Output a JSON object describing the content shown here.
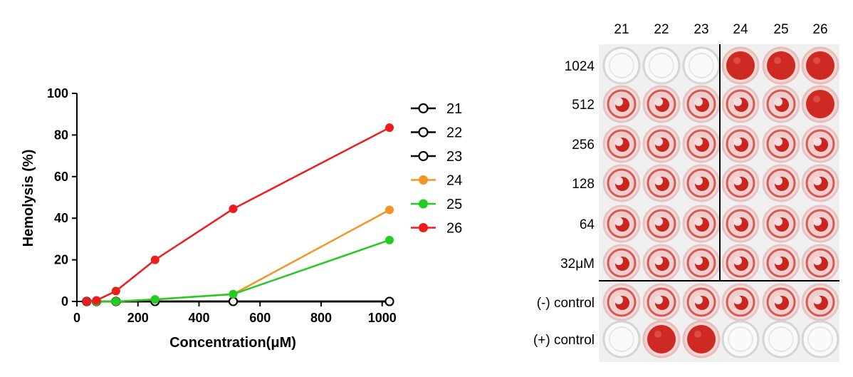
{
  "chart_data": {
    "type": "line",
    "xlabel": "Concentration(μM)",
    "ylabel": "Hemolysis (%)",
    "xlim": [
      0,
      1024
    ],
    "ylim": [
      0,
      100
    ],
    "x_ticks": [
      "0",
      "200",
      "400",
      "600",
      "800",
      "1000"
    ],
    "y_ticks": [
      "0",
      "20",
      "40",
      "60",
      "80",
      "100"
    ],
    "x": [
      32,
      64,
      128,
      256,
      512,
      1024
    ],
    "series": [
      {
        "name": "21",
        "color": "#000000",
        "marker": "open-circle",
        "values": [
          0,
          0,
          0,
          0,
          0,
          0
        ]
      },
      {
        "name": "22",
        "color": "#000000",
        "marker": "open-circle",
        "values": [
          0,
          0,
          0,
          0,
          0,
          0
        ]
      },
      {
        "name": "23",
        "color": "#000000",
        "marker": "open-circle",
        "values": [
          0,
          0,
          0,
          0,
          0,
          0
        ]
      },
      {
        "name": "24",
        "color": "#f39424",
        "marker": "filled-circle",
        "values": [
          0,
          0,
          0,
          1,
          3.5,
          44
        ]
      },
      {
        "name": "25",
        "color": "#22cc22",
        "marker": "filled-circle",
        "values": [
          0,
          0,
          0,
          1,
          3.5,
          29.5
        ]
      },
      {
        "name": "26",
        "color": "#ee1c1c",
        "marker": "filled-circle",
        "values": [
          0,
          0.5,
          5,
          20,
          44.5,
          83.5
        ]
      }
    ],
    "legend_position": "right",
    "grid": false
  },
  "plate": {
    "column_labels": [
      "21",
      "22",
      "23",
      "24",
      "25",
      "26"
    ],
    "row_labels": [
      "1024",
      "512",
      "256",
      "128",
      "64",
      "32μM",
      "(-) control",
      "(+) control"
    ],
    "wells": [
      [
        "clear",
        "clear",
        "clear",
        "red",
        "red",
        "red"
      ],
      [
        "pellet",
        "pellet",
        "pellet",
        "pellet",
        "pellet",
        "red"
      ],
      [
        "pellet",
        "pellet",
        "pellet",
        "pellet",
        "pellet",
        "pellet"
      ],
      [
        "pellet",
        "pellet",
        "pellet",
        "pellet",
        "pellet",
        "pellet"
      ],
      [
        "pellet",
        "pellet",
        "pellet",
        "pellet",
        "pellet",
        "pellet"
      ],
      [
        "pellet",
        "pellet",
        "pellet",
        "pellet",
        "pellet",
        "pellet"
      ],
      [
        "pellet",
        "pellet",
        "pellet",
        "pellet",
        "pellet",
        "pellet"
      ],
      [
        "clear",
        "red",
        "red",
        "clear",
        "clear",
        "clear"
      ]
    ]
  }
}
